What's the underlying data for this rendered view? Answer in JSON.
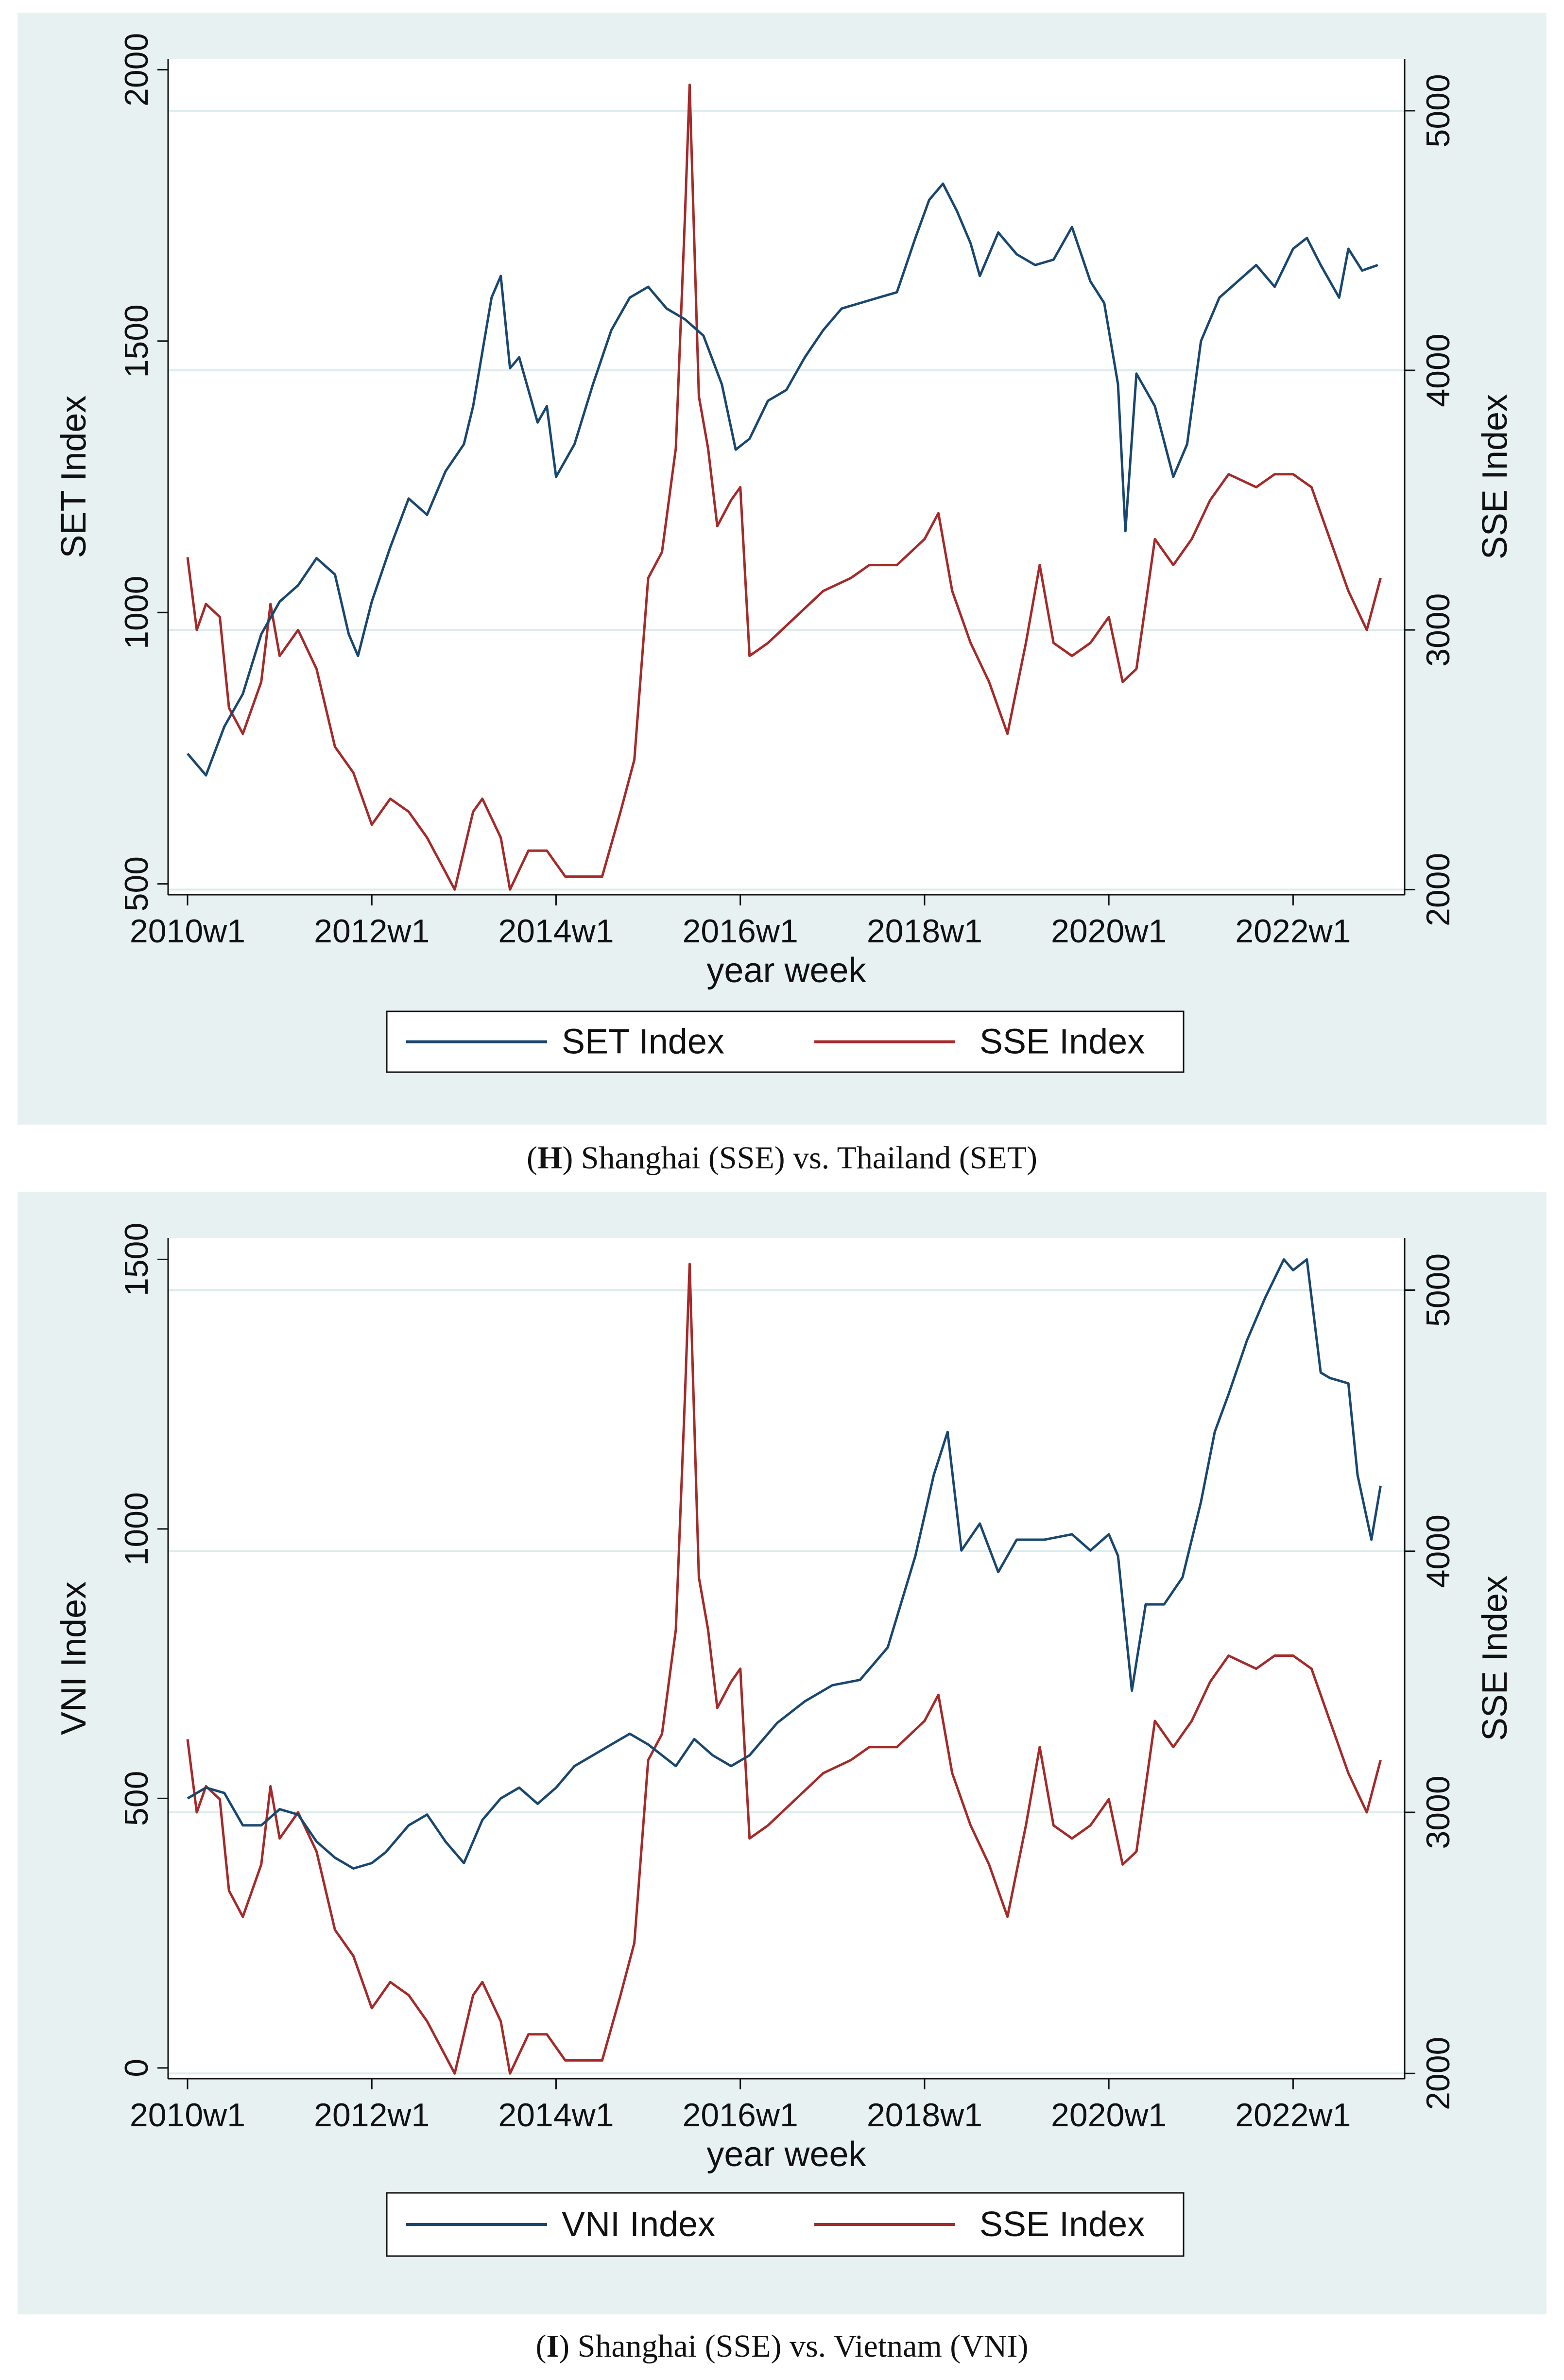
{
  "captions": [
    {
      "letter": "H",
      "text": ") Shanghai (SSE) vs. Thailand (SET)"
    },
    {
      "letter": "I",
      "text": ") Shanghai (SSE) vs. Vietnam (VNI)"
    }
  ],
  "colors": {
    "primary": "#1a476f",
    "secondary": "#a52a2a",
    "panel_bg": "#e8f1f2",
    "grid": "#dcebeb"
  },
  "chart_data": [
    {
      "type": "line",
      "title": "(H) Shanghai (SSE) vs. Thailand (SET)",
      "xlabel": "year week",
      "ylabel_left": "SET Index",
      "ylabel_right": "SSE Index",
      "xlim": [
        2010,
        2023
      ],
      "ylim_left": [
        480,
        2020
      ],
      "ylim_right": [
        1980,
        5200
      ],
      "xticks": [
        {
          "value": 2010,
          "label": "2010w1"
        },
        {
          "value": 2012,
          "label": "2012w1"
        },
        {
          "value": 2014,
          "label": "2014w1"
        },
        {
          "value": 2016,
          "label": "2016w1"
        },
        {
          "value": 2018,
          "label": "2018w1"
        },
        {
          "value": 2020,
          "label": "2020w1"
        },
        {
          "value": 2022,
          "label": "2022w1"
        }
      ],
      "yticks_left": [
        500,
        1000,
        1500,
        2000
      ],
      "yticks_right": [
        2000,
        3000,
        4000,
        5000
      ],
      "grid": true,
      "legend_position": "bottom",
      "series": [
        {
          "name": "SET Index",
          "axis": "left",
          "x": [
            2010.0,
            2010.2,
            2010.4,
            2010.6,
            2010.8,
            2011.0,
            2011.2,
            2011.4,
            2011.6,
            2011.75,
            2011.85,
            2012.0,
            2012.2,
            2012.4,
            2012.6,
            2012.8,
            2013.0,
            2013.1,
            2013.2,
            2013.3,
            2013.4,
            2013.5,
            2013.6,
            2013.8,
            2013.9,
            2014.0,
            2014.2,
            2014.4,
            2014.6,
            2014.8,
            2015.0,
            2015.2,
            2015.4,
            2015.6,
            2015.8,
            2015.95,
            2016.1,
            2016.3,
            2016.5,
            2016.7,
            2016.9,
            2017.1,
            2017.3,
            2017.5,
            2017.7,
            2017.9,
            2018.05,
            2018.2,
            2018.35,
            2018.5,
            2018.6,
            2018.8,
            2019.0,
            2019.2,
            2019.4,
            2019.6,
            2019.8,
            2019.95,
            2020.1,
            2020.18,
            2020.3,
            2020.5,
            2020.7,
            2020.85,
            2021.0,
            2021.2,
            2021.4,
            2021.6,
            2021.8,
            2022.0,
            2022.15,
            2022.3,
            2022.5,
            2022.6,
            2022.75,
            2022.92
          ],
          "y": [
            740,
            700,
            790,
            850,
            960,
            1020,
            1050,
            1100,
            1070,
            960,
            920,
            1020,
            1120,
            1210,
            1180,
            1260,
            1310,
            1380,
            1480,
            1580,
            1620,
            1450,
            1470,
            1350,
            1380,
            1250,
            1310,
            1420,
            1520,
            1580,
            1600,
            1560,
            1540,
            1510,
            1420,
            1300,
            1320,
            1390,
            1410,
            1470,
            1520,
            1560,
            1570,
            1580,
            1590,
            1690,
            1760,
            1790,
            1740,
            1680,
            1620,
            1700,
            1660,
            1640,
            1650,
            1710,
            1610,
            1570,
            1420,
            1150,
            1440,
            1380,
            1250,
            1310,
            1500,
            1580,
            1610,
            1640,
            1600,
            1670,
            1690,
            1640,
            1580,
            1670,
            1630,
            1640
          ]
        },
        {
          "name": "SSE Index",
          "axis": "right",
          "x": [
            2010.0,
            2010.1,
            2010.2,
            2010.35,
            2010.45,
            2010.6,
            2010.8,
            2010.9,
            2011.0,
            2011.2,
            2011.4,
            2011.6,
            2011.8,
            2012.0,
            2012.2,
            2012.4,
            2012.6,
            2012.9,
            2013.1,
            2013.2,
            2013.4,
            2013.5,
            2013.7,
            2013.9,
            2014.1,
            2014.3,
            2014.5,
            2014.7,
            2014.85,
            2015.0,
            2015.15,
            2015.3,
            2015.4,
            2015.45,
            2015.55,
            2015.65,
            2015.75,
            2015.9,
            2016.0,
            2016.1,
            2016.3,
            2016.6,
            2016.9,
            2017.2,
            2017.4,
            2017.7,
            2018.0,
            2018.15,
            2018.3,
            2018.5,
            2018.7,
            2018.9,
            2019.1,
            2019.25,
            2019.4,
            2019.6,
            2019.8,
            2020.0,
            2020.15,
            2020.3,
            2020.5,
            2020.7,
            2020.9,
            2021.1,
            2021.3,
            2021.6,
            2021.8,
            2022.0,
            2022.2,
            2022.4,
            2022.6,
            2022.8,
            2022.95
          ],
          "y": [
            3280,
            3000,
            3100,
            3050,
            2700,
            2600,
            2800,
            3100,
            2900,
            3000,
            2850,
            2550,
            2450,
            2250,
            2350,
            2300,
            2200,
            2000,
            2300,
            2350,
            2200,
            2000,
            2150,
            2150,
            2050,
            2050,
            2050,
            2300,
            2500,
            3200,
            3300,
            3700,
            4600,
            5100,
            3900,
            3700,
            3400,
            3500,
            3550,
            2900,
            2950,
            3050,
            3150,
            3200,
            3250,
            3250,
            3350,
            3450,
            3150,
            2950,
            2800,
            2600,
            2950,
            3250,
            2950,
            2900,
            2950,
            3050,
            2800,
            2850,
            3350,
            3250,
            3350,
            3500,
            3600,
            3550,
            3600,
            3600,
            3550,
            3350,
            3150,
            3000,
            3200
          ]
        }
      ]
    },
    {
      "type": "line",
      "title": "(I) Shanghai (SSE) vs. Vietnam (VNI)",
      "xlabel": "year week",
      "ylabel_left": "VNI Index",
      "ylabel_right": "SSE Index",
      "xlim": [
        2010,
        2023
      ],
      "ylim_left": [
        -20,
        1540
      ],
      "ylim_right": [
        1980,
        5200
      ],
      "xticks": [
        {
          "value": 2010,
          "label": "2010w1"
        },
        {
          "value": 2012,
          "label": "2012w1"
        },
        {
          "value": 2014,
          "label": "2014w1"
        },
        {
          "value": 2016,
          "label": "2016w1"
        },
        {
          "value": 2018,
          "label": "2018w1"
        },
        {
          "value": 2020,
          "label": "2020w1"
        },
        {
          "value": 2022,
          "label": "2022w1"
        }
      ],
      "yticks_left": [
        0,
        500,
        1000,
        1500
      ],
      "yticks_right": [
        2000,
        3000,
        4000,
        5000
      ],
      "grid": true,
      "legend_position": "bottom",
      "series": [
        {
          "name": "VNI Index",
          "axis": "left",
          "x": [
            2010.0,
            2010.2,
            2010.4,
            2010.6,
            2010.8,
            2011.0,
            2011.2,
            2011.4,
            2011.6,
            2011.8,
            2012.0,
            2012.15,
            2012.4,
            2012.6,
            2012.8,
            2013.0,
            2013.2,
            2013.4,
            2013.6,
            2013.8,
            2014.0,
            2014.2,
            2014.4,
            2014.6,
            2014.8,
            2015.0,
            2015.3,
            2015.5,
            2015.7,
            2015.9,
            2016.1,
            2016.4,
            2016.7,
            2017.0,
            2017.3,
            2017.6,
            2017.9,
            2018.1,
            2018.25,
            2018.4,
            2018.6,
            2018.8,
            2019.0,
            2019.3,
            2019.6,
            2019.8,
            2020.0,
            2020.1,
            2020.25,
            2020.4,
            2020.6,
            2020.8,
            2021.0,
            2021.15,
            2021.3,
            2021.5,
            2021.7,
            2021.9,
            2022.0,
            2022.15,
            2022.3,
            2022.4,
            2022.6,
            2022.7,
            2022.85,
            2022.95
          ],
          "y": [
            500,
            520,
            510,
            450,
            450,
            480,
            470,
            420,
            390,
            370,
            380,
            400,
            450,
            470,
            420,
            380,
            460,
            500,
            520,
            490,
            520,
            560,
            580,
            600,
            620,
            600,
            560,
            610,
            580,
            560,
            580,
            640,
            680,
            710,
            720,
            780,
            950,
            1100,
            1180,
            960,
            1010,
            920,
            980,
            980,
            990,
            960,
            990,
            950,
            700,
            860,
            860,
            910,
            1050,
            1180,
            1250,
            1350,
            1430,
            1500,
            1480,
            1500,
            1290,
            1280,
            1270,
            1100,
            980,
            1080
          ]
        },
        {
          "name": "SSE Index",
          "axis": "right",
          "x": [
            2010.0,
            2010.1,
            2010.2,
            2010.35,
            2010.45,
            2010.6,
            2010.8,
            2010.9,
            2011.0,
            2011.2,
            2011.4,
            2011.6,
            2011.8,
            2012.0,
            2012.2,
            2012.4,
            2012.6,
            2012.9,
            2013.1,
            2013.2,
            2013.4,
            2013.5,
            2013.7,
            2013.9,
            2014.1,
            2014.3,
            2014.5,
            2014.7,
            2014.85,
            2015.0,
            2015.15,
            2015.3,
            2015.4,
            2015.45,
            2015.55,
            2015.65,
            2015.75,
            2015.9,
            2016.0,
            2016.1,
            2016.3,
            2016.6,
            2016.9,
            2017.2,
            2017.4,
            2017.7,
            2018.0,
            2018.15,
            2018.3,
            2018.5,
            2018.7,
            2018.9,
            2019.1,
            2019.25,
            2019.4,
            2019.6,
            2019.8,
            2020.0,
            2020.15,
            2020.3,
            2020.5,
            2020.7,
            2020.9,
            2021.1,
            2021.3,
            2021.6,
            2021.8,
            2022.0,
            2022.2,
            2022.4,
            2022.6,
            2022.8,
            2022.95
          ],
          "y": [
            3280,
            3000,
            3100,
            3050,
            2700,
            2600,
            2800,
            3100,
            2900,
            3000,
            2850,
            2550,
            2450,
            2250,
            2350,
            2300,
            2200,
            2000,
            2300,
            2350,
            2200,
            2000,
            2150,
            2150,
            2050,
            2050,
            2050,
            2300,
            2500,
            3200,
            3300,
            3700,
            4600,
            5100,
            3900,
            3700,
            3400,
            3500,
            3550,
            2900,
            2950,
            3050,
            3150,
            3200,
            3250,
            3250,
            3350,
            3450,
            3150,
            2950,
            2800,
            2600,
            2950,
            3250,
            2950,
            2900,
            2950,
            3050,
            2800,
            2850,
            3350,
            3250,
            3350,
            3500,
            3600,
            3550,
            3600,
            3600,
            3550,
            3350,
            3150,
            3000,
            3200
          ]
        }
      ]
    }
  ]
}
